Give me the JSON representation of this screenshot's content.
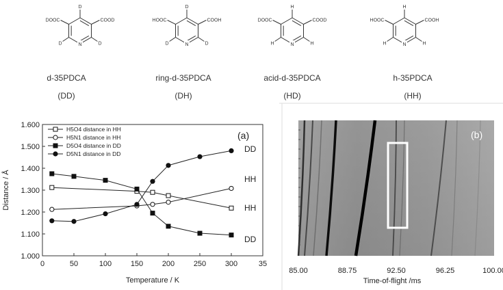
{
  "molecules": [
    {
      "name": "d-35PDCA",
      "code": "(DD)",
      "left_group": "DOOC",
      "right_group": "COOD",
      "top_atom": "D",
      "bl_atom": "D",
      "br_atom": "D",
      "n_atom": "N"
    },
    {
      "name": "ring-d-35PDCA",
      "code": "(DH)",
      "left_group": "HOOC",
      "right_group": "COOH",
      "top_atom": "D",
      "bl_atom": "D",
      "br_atom": "D",
      "n_atom": "N"
    },
    {
      "name": "acid-d-35PDCA",
      "code": "(HD)",
      "left_group": "DOOC",
      "right_group": "COOD",
      "top_atom": "H",
      "bl_atom": "H",
      "br_atom": "H",
      "n_atom": "N"
    },
    {
      "name": "h-35PDCA",
      "code": "(HH)",
      "left_group": "HOOC",
      "right_group": "COOH",
      "top_atom": "H",
      "bl_atom": "H",
      "br_atom": "H",
      "n_atom": "N"
    }
  ],
  "chart_data": [
    {
      "type": "line",
      "panel_label": "(a)",
      "title": "",
      "xlabel": "Temperature / K",
      "ylabel": "Distance / Å",
      "xlim": [
        0,
        350
      ],
      "ylim": [
        1.0,
        1.6
      ],
      "xticks": [
        "0",
        "50",
        "100",
        "150",
        "200",
        "250",
        "300",
        "35"
      ],
      "yticks": [
        "1.000",
        "1.100",
        "1.200",
        "1.300",
        "1.400",
        "1.500",
        "1.600"
      ],
      "grid": false,
      "legend_position": "top-left",
      "x": [
        15,
        50,
        100,
        150,
        175,
        200,
        250,
        300
      ],
      "series": [
        {
          "name": "H5O4 distance in HH",
          "marker": "open-square",
          "x": [
            15,
            150,
            175,
            200,
            300
          ],
          "values": [
            1.312,
            1.295,
            1.29,
            1.275,
            1.218
          ]
        },
        {
          "name": "H5N1 distance in HH",
          "marker": "open-circle",
          "x": [
            15,
            150,
            175,
            200,
            300
          ],
          "values": [
            1.212,
            1.228,
            1.235,
            1.245,
            1.308
          ]
        },
        {
          "name": "D5O4 distance in DD",
          "marker": "filled-square",
          "x": [
            15,
            50,
            100,
            150,
            175,
            200,
            250,
            300
          ],
          "values": [
            1.375,
            1.363,
            1.345,
            1.305,
            1.195,
            1.135,
            1.103,
            1.095
          ]
        },
        {
          "name": "D5N1 distance in DD",
          "marker": "filled-circle",
          "x": [
            15,
            50,
            100,
            150,
            175,
            200,
            250,
            300
          ],
          "values": [
            1.16,
            1.157,
            1.192,
            1.235,
            1.34,
            1.413,
            1.453,
            1.48
          ]
        }
      ],
      "annotations": [
        {
          "text": "DD",
          "near": "D5N1 end"
        },
        {
          "text": "HH",
          "near": "H5N1 end"
        },
        {
          "text": "HH",
          "near": "H5O4 end"
        },
        {
          "text": "DD",
          "near": "D5O4 end"
        }
      ]
    },
    {
      "type": "heatmap",
      "panel_label": "(b)",
      "xlabel": "Time-of-flight /ms",
      "xlim": [
        85.0,
        100.0
      ],
      "xticks": [
        "85.00",
        "88.75",
        "92.50",
        "96.25",
        "100.00"
      ],
      "colormap": "grayscale",
      "highlight_box": {
        "x_range": [
          92.4,
          93.6
        ],
        "relative_y_range": [
          0.1,
          0.8
        ]
      }
    }
  ]
}
